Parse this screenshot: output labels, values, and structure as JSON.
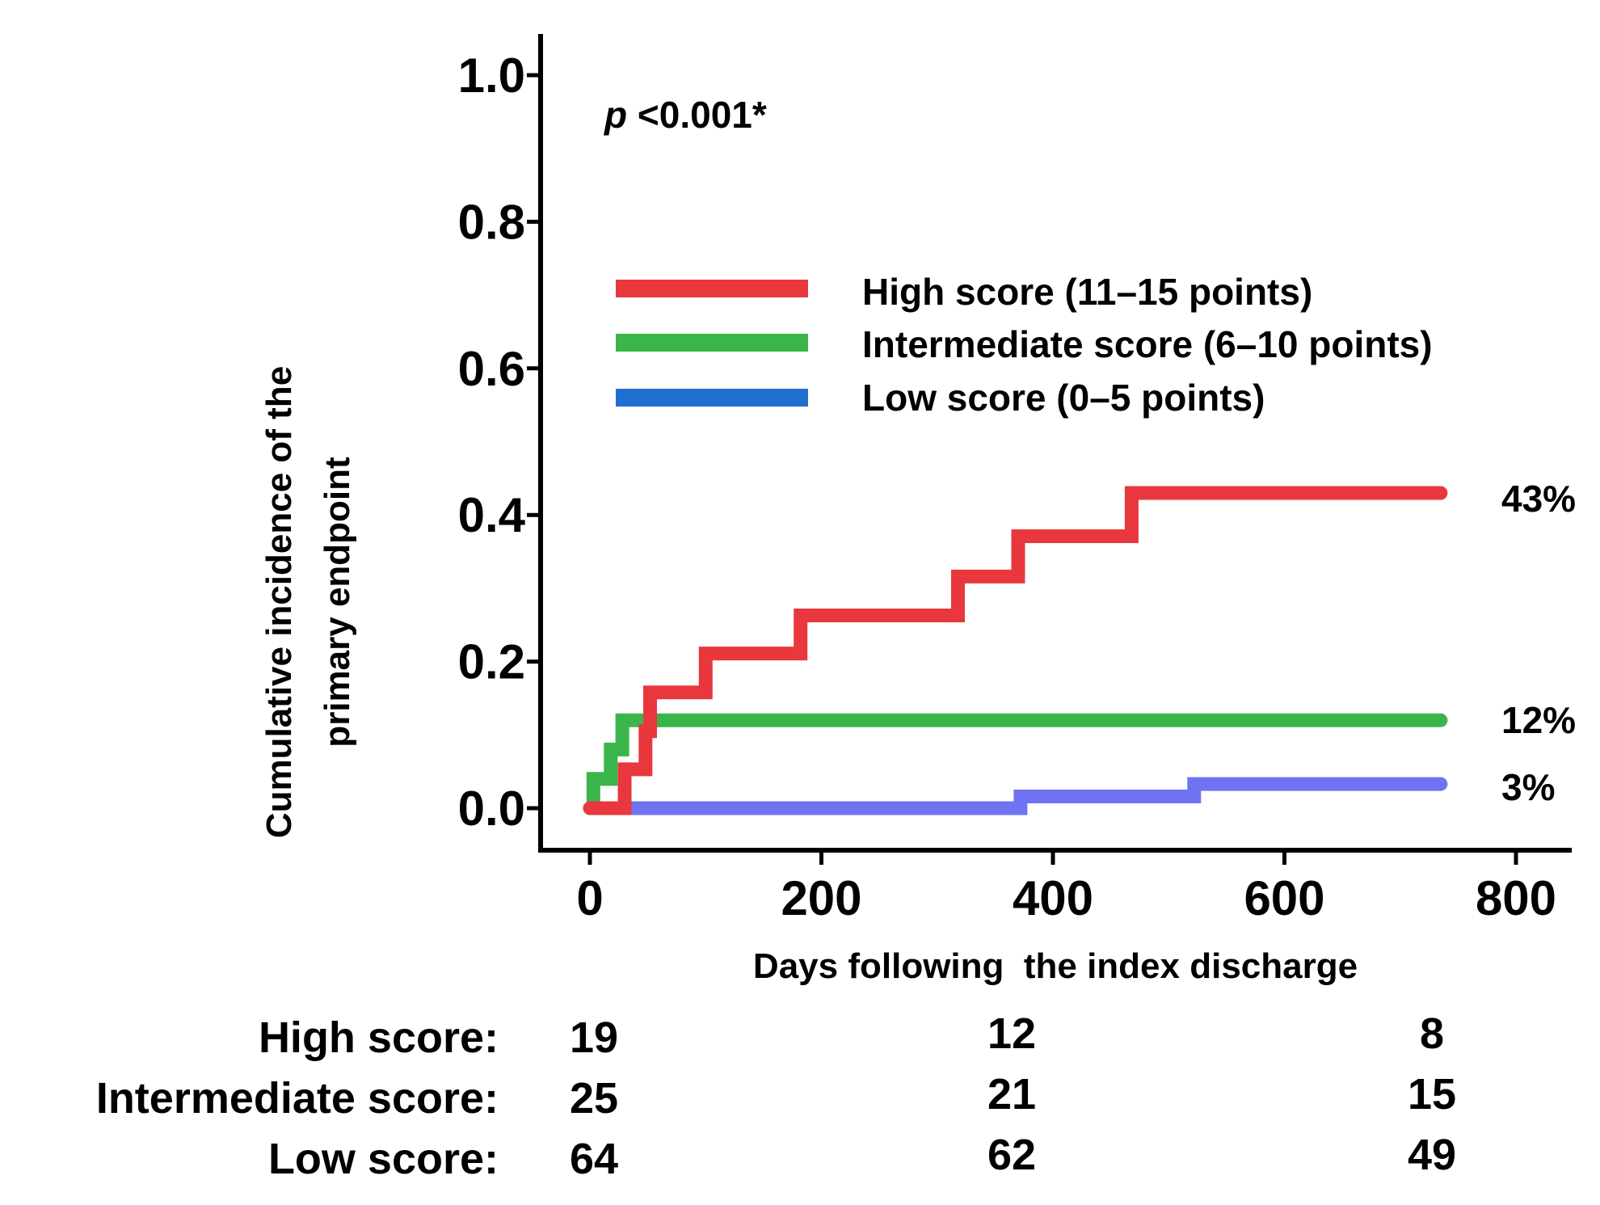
{
  "chart_data": {
    "type": "line",
    "subtype": "step",
    "xlabel": "Days following  the index discharge",
    "ylabel_lines": [
      "Cumulative incidence of the",
      "primary endpoint"
    ],
    "xlim": [
      0,
      800
    ],
    "ylim": [
      0,
      1.0
    ],
    "x_ticks": [
      {
        "value": 0,
        "label": "0"
      },
      {
        "value": 200,
        "label": "200"
      },
      {
        "value": 400,
        "label": "400"
      },
      {
        "value": 600,
        "label": "600"
      },
      {
        "value": 800,
        "label": "800"
      }
    ],
    "y_ticks": [
      {
        "value": 0.0,
        "label": "0.0"
      },
      {
        "value": 0.2,
        "label": "0.2"
      },
      {
        "value": 0.4,
        "label": "0.4"
      },
      {
        "value": 0.6,
        "label": "0.6"
      },
      {
        "value": 0.8,
        "label": "0.8"
      },
      {
        "value": 1.0,
        "label": "1.0"
      }
    ],
    "annotation": {
      "italic": "p",
      "rest": " <0.001*"
    },
    "series": [
      {
        "name": "High score (11–15 points)",
        "color": "#e8383d",
        "end_label": "43%",
        "points": [
          [
            0,
            0
          ],
          [
            30,
            0
          ],
          [
            30,
            0.053
          ],
          [
            48,
            0.053
          ],
          [
            48,
            0.105
          ],
          [
            52,
            0.105
          ],
          [
            52,
            0.158
          ],
          [
            100,
            0.158
          ],
          [
            100,
            0.211
          ],
          [
            182,
            0.211
          ],
          [
            182,
            0.263
          ],
          [
            318,
            0.263
          ],
          [
            318,
            0.316
          ],
          [
            370,
            0.316
          ],
          [
            370,
            0.371
          ],
          [
            468,
            0.371
          ],
          [
            468,
            0.43
          ],
          [
            735,
            0.43
          ]
        ]
      },
      {
        "name": "Intermediate score (6–10 points)",
        "color": "#3ab54a",
        "end_label": "12%",
        "points": [
          [
            0,
            0
          ],
          [
            3,
            0
          ],
          [
            3,
            0.04
          ],
          [
            18,
            0.04
          ],
          [
            18,
            0.08
          ],
          [
            28,
            0.08
          ],
          [
            28,
            0.12
          ],
          [
            735,
            0.12
          ]
        ]
      },
      {
        "name": "Low score (0–5 points)",
        "color": "#6f73f2",
        "end_label": "3%",
        "points": [
          [
            30,
            0
          ],
          [
            372,
            0
          ],
          [
            372,
            0.016
          ],
          [
            522,
            0.016
          ],
          [
            522,
            0.033
          ],
          [
            735,
            0.033
          ]
        ]
      }
    ],
    "legend_colors": [
      "#e8383d",
      "#3ab54a",
      "#1f6fd1"
    ]
  },
  "risk_table": {
    "rows": [
      {
        "label": "High score:",
        "values": [
          "19",
          "12",
          "8"
        ]
      },
      {
        "label": "Intermediate score:",
        "values": [
          "25",
          "21",
          "15"
        ]
      },
      {
        "label": "Low score:",
        "values": [
          "64",
          "62",
          "49"
        ]
      }
    ]
  }
}
